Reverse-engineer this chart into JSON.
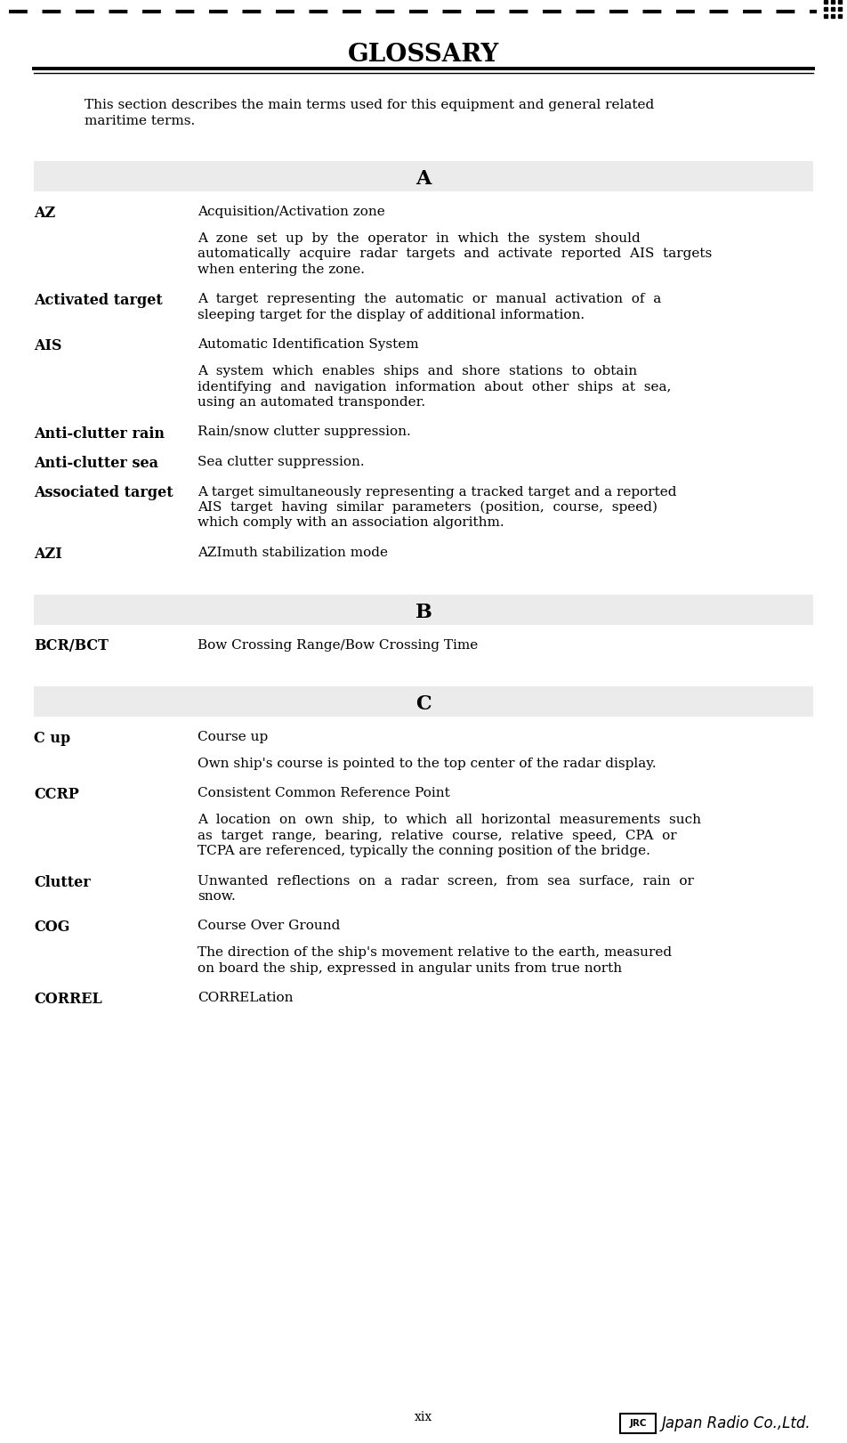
{
  "page_num": "xix",
  "title": "GLOSSARY",
  "intro_line1": "This section describes the main terms used for this equipment and general related",
  "intro_line2": "maritime terms.",
  "bg_color": "#ffffff",
  "header_bg": "#ebebeb",
  "entries": [
    {
      "section": "A",
      "term": "AZ",
      "lines": [
        {
          "text": "Acquisition/Activation zone",
          "indent": false
        },
        {
          "text": "",
          "indent": false
        },
        {
          "text": "A  zone  set  up  by  the  operator  in  which  the  system  should",
          "indent": true
        },
        {
          "text": "automatically  acquire  radar  targets  and  activate  reported  AIS  targets",
          "indent": true
        },
        {
          "text": "when entering the zone.",
          "indent": true
        }
      ]
    },
    {
      "section": "A",
      "term": "Activated target",
      "lines": [
        {
          "text": "A  target  representing  the  automatic  or  manual  activation  of  a",
          "indent": true
        },
        {
          "text": "sleeping target for the display of additional information.",
          "indent": true
        }
      ]
    },
    {
      "section": "A",
      "term": "AIS",
      "lines": [
        {
          "text": "Automatic Identification System",
          "indent": false
        },
        {
          "text": "",
          "indent": false
        },
        {
          "text": "A  system  which  enables  ships  and  shore  stations  to  obtain",
          "indent": true
        },
        {
          "text": "identifying  and  navigation  information  about  other  ships  at  sea,",
          "indent": true
        },
        {
          "text": "using an automated transponder.",
          "indent": true
        }
      ]
    },
    {
      "section": "A",
      "term": "Anti-clutter rain",
      "lines": [
        {
          "text": "Rain/snow clutter suppression.",
          "indent": false
        }
      ]
    },
    {
      "section": "A",
      "term": "Anti-clutter sea",
      "lines": [
        {
          "text": "Sea clutter suppression.",
          "indent": false
        }
      ]
    },
    {
      "section": "A",
      "term": "Associated target",
      "lines": [
        {
          "text": "A target simultaneously representing a tracked target and a reported",
          "indent": false
        },
        {
          "text": "AIS  target  having  similar  parameters  (position,  course,  speed)",
          "indent": true
        },
        {
          "text": "which comply with an association algorithm.",
          "indent": true
        }
      ]
    },
    {
      "section": "A",
      "term": "AZI",
      "lines": [
        {
          "text": "AZImuth stabilization mode",
          "indent": false
        }
      ]
    },
    {
      "section": "B",
      "term": "BCR/BCT",
      "lines": [
        {
          "text": "Bow Crossing Range/Bow Crossing Time",
          "indent": false
        }
      ]
    },
    {
      "section": "C",
      "term": "C up",
      "lines": [
        {
          "text": "Course up",
          "indent": false
        },
        {
          "text": "",
          "indent": false
        },
        {
          "text": "Own ship's course is pointed to the top center of the radar display.",
          "indent": false
        }
      ]
    },
    {
      "section": "C",
      "term": "CCRP",
      "lines": [
        {
          "text": "Consistent Common Reference Point",
          "indent": false
        },
        {
          "text": "",
          "indent": false
        },
        {
          "text": "A  location  on  own  ship,  to  which  all  horizontal  measurements  such",
          "indent": true
        },
        {
          "text": "as  target  range,  bearing,  relative  course,  relative  speed,  CPA  or",
          "indent": true
        },
        {
          "text": "TCPA are referenced, typically the conning position of the bridge.",
          "indent": true
        }
      ]
    },
    {
      "section": "C",
      "term": "Clutter",
      "lines": [
        {
          "text": "Unwanted  reflections  on  a  radar  screen,  from  sea  surface,  rain  or",
          "indent": true
        },
        {
          "text": "snow.",
          "indent": true
        }
      ]
    },
    {
      "section": "C",
      "term": "COG",
      "lines": [
        {
          "text": "Course Over Ground",
          "indent": false
        },
        {
          "text": "",
          "indent": false
        },
        {
          "text": "The direction of the ship's movement relative to the earth, measured",
          "indent": false
        },
        {
          "text": "on board the ship, expressed in angular units from true north",
          "indent": false
        }
      ]
    },
    {
      "section": "C",
      "term": "CORREL",
      "lines": [
        {
          "text": "CORRELation",
          "indent": false
        }
      ]
    }
  ]
}
